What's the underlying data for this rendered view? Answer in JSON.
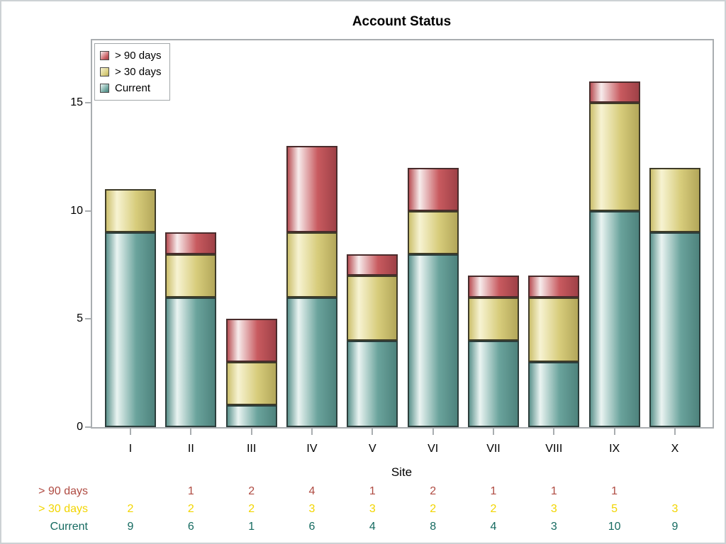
{
  "title": "Account Status",
  "chart_data": {
    "type": "bar",
    "stacked": true,
    "title": "Account Status",
    "xlabel": "Site",
    "ylabel": "",
    "categories": [
      "I",
      "II",
      "III",
      "IV",
      "V",
      "VI",
      "VII",
      "VIII",
      "IX",
      "X"
    ],
    "y_ticks": [
      0,
      5,
      10,
      15
    ],
    "ylim": [
      0,
      17.9
    ],
    "grid": false,
    "legend_position": "top-left-inside",
    "stack_order_bottom_to_top": [
      "Current",
      "> 30 days",
      "> 90 days"
    ],
    "series": [
      {
        "name": "> 90 days",
        "values": [
          null,
          1,
          2,
          4,
          1,
          2,
          1,
          1,
          1,
          null
        ],
        "color_main": "#C85A5F",
        "color_mid": "#B95156",
        "color_light": "#F7ECEC",
        "color_dark": "#9F4147",
        "border_color": "#4A2C2C",
        "text_color": "#AF4B42"
      },
      {
        "name": "> 30 days",
        "values": [
          2,
          2,
          2,
          3,
          3,
          2,
          2,
          3,
          5,
          3
        ],
        "color_main": "#D7CC7B",
        "color_mid": "#CCC06E",
        "color_light": "#F7F3D2",
        "color_dark": "#B3A75A",
        "border_color": "#3F3C28",
        "text_color": "#F2D500"
      },
      {
        "name": "Current",
        "values": [
          9,
          6,
          1,
          6,
          4,
          8,
          4,
          3,
          10,
          9
        ],
        "color_main": "#6AA39C",
        "color_mid": "#5E948E",
        "color_light": "#EAF4F2",
        "color_dark": "#4E837D",
        "border_color": "#2C3E3C",
        "text_color": "#156A60"
      }
    ],
    "totals": [
      11,
      9,
      5,
      13,
      8,
      12,
      7,
      7,
      16,
      12
    ]
  },
  "frame_color": "#A9ADB0",
  "summary_table": {
    "rows": [
      {
        "label": "> 90 days",
        "cells": [
          "",
          "1",
          "2",
          "4",
          "1",
          "2",
          "1",
          "1",
          "1",
          ""
        ]
      },
      {
        "label": "> 30 days",
        "cells": [
          "2",
          "2",
          "2",
          "3",
          "3",
          "2",
          "2",
          "3",
          "5",
          "3"
        ]
      },
      {
        "label": "Current",
        "cells": [
          "9",
          "6",
          "1",
          "6",
          "4",
          "8",
          "4",
          "3",
          "10",
          "9"
        ]
      }
    ]
  }
}
